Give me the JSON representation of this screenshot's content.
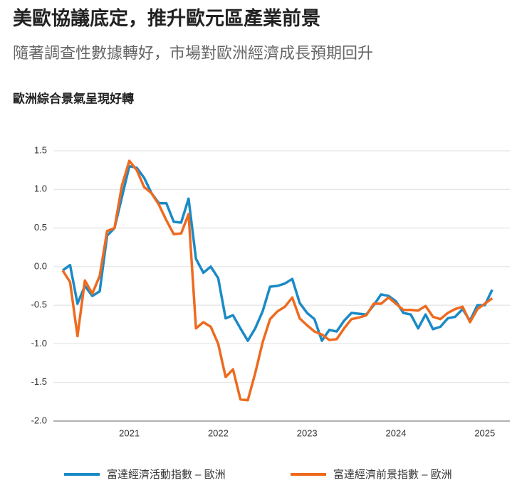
{
  "chart_data": {
    "type": "line",
    "title": "美歐協議底定，推升歐元區產業前景",
    "subtitle": "隨著調查性數據轉好，市場對歐洲經濟成長預期回升",
    "chart_title": "歐洲綜合景氣呈現好轉",
    "categories": [
      null,
      null,
      null,
      null,
      null,
      null,
      null,
      null,
      null,
      "2021",
      null,
      null,
      null,
      null,
      null,
      null,
      null,
      null,
      null,
      null,
      null,
      "2022",
      null,
      null,
      null,
      null,
      null,
      null,
      null,
      null,
      null,
      null,
      null,
      "2023",
      null,
      null,
      null,
      null,
      null,
      null,
      null,
      null,
      null,
      null,
      null,
      "2024",
      null,
      null,
      null,
      null,
      null,
      null,
      null,
      null,
      null,
      null,
      null,
      "2025",
      null
    ],
    "series": [
      {
        "name": "富達經濟活動指數 – 歐洲",
        "color": "#1a8ac6",
        "values": [
          -0.05,
          0.02,
          -0.48,
          -0.25,
          -0.38,
          -0.32,
          0.4,
          0.5,
          0.9,
          1.3,
          1.28,
          1.15,
          0.95,
          0.82,
          0.82,
          0.58,
          0.57,
          0.88,
          0.1,
          -0.08,
          0.0,
          -0.15,
          -0.67,
          -0.63,
          -0.8,
          -0.96,
          -0.8,
          -0.58,
          -0.26,
          -0.25,
          -0.22,
          -0.16,
          -0.47,
          -0.6,
          -0.68,
          -0.96,
          -0.82,
          -0.84,
          -0.7,
          -0.6,
          -0.61,
          -0.62,
          -0.5,
          -0.36,
          -0.38,
          -0.45,
          -0.6,
          -0.62,
          -0.8,
          -0.62,
          -0.81,
          -0.78,
          -0.67,
          -0.65,
          -0.55,
          -0.7,
          -0.5,
          -0.5,
          -0.3
        ]
      },
      {
        "name": "富達經濟前景指數 – 歐洲",
        "color": "#ee6a1f",
        "values": [
          -0.05,
          -0.2,
          -0.9,
          -0.18,
          -0.35,
          -0.12,
          0.46,
          0.5,
          1.05,
          1.37,
          1.25,
          1.03,
          0.95,
          0.8,
          0.6,
          0.42,
          0.43,
          0.68,
          -0.8,
          -0.72,
          -0.78,
          -1.0,
          -1.43,
          -1.33,
          -1.72,
          -1.73,
          -1.38,
          -0.98,
          -0.68,
          -0.58,
          -0.52,
          -0.4,
          -0.67,
          -0.76,
          -0.84,
          -0.88,
          -0.95,
          -0.94,
          -0.8,
          -0.68,
          -0.66,
          -0.63,
          -0.48,
          -0.48,
          -0.4,
          -0.48,
          -0.56,
          -0.56,
          -0.57,
          -0.51,
          -0.65,
          -0.68,
          -0.6,
          -0.55,
          -0.52,
          -0.72,
          -0.55,
          -0.48,
          -0.41
        ]
      }
    ],
    "ylim": [
      -2.0,
      1.5
    ],
    "yticks": [
      {
        "value": 1.5,
        "label": "1.5"
      },
      {
        "value": 1.0,
        "label": "1.0"
      },
      {
        "value": 0.5,
        "label": "0.5"
      },
      {
        "value": 0,
        "label": "0.0"
      },
      {
        "value": -0.5,
        "label": "-0.5"
      },
      {
        "value": -1.0,
        "label": "-1.0"
      },
      {
        "value": -1.5,
        "label": "-1.5"
      },
      {
        "value": -2.0,
        "label": "-2.0"
      }
    ],
    "grid": true
  }
}
